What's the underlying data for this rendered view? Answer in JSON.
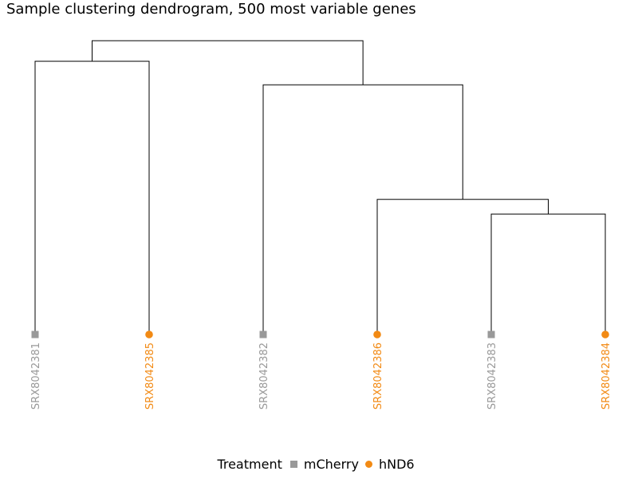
{
  "chart_data": {
    "type": "dendrogram",
    "title": "Sample clustering dendrogram, 500 most variable genes",
    "leaves": [
      {
        "label": "SRX8042381",
        "group": "mCherry"
      },
      {
        "label": "SRX8042385",
        "group": "hND6"
      },
      {
        "label": "SRX8042382",
        "group": "mCherry"
      },
      {
        "label": "SRX8042386",
        "group": "hND6"
      },
      {
        "label": "SRX8042383",
        "group": "mCherry"
      },
      {
        "label": "SRX8042384",
        "group": "hND6"
      }
    ],
    "merges": [
      {
        "left": "leaf:4",
        "right": "leaf:5",
        "height": 0.41
      },
      {
        "left": "leaf:3",
        "right": "node:0",
        "height": 0.46
      },
      {
        "left": "leaf:2",
        "right": "node:1",
        "height": 0.85
      },
      {
        "left": "leaf:0",
        "right": "leaf:1",
        "height": 0.93
      },
      {
        "left": "node:3",
        "right": "node:2",
        "height": 1.0
      }
    ],
    "legend": {
      "title": "Treatment",
      "placement": "bottom",
      "entries": [
        {
          "label": "mCherry",
          "shape": "square",
          "color": "#999999"
        },
        {
          "label": "hND6",
          "shape": "circle",
          "color": "#f28a14"
        }
      ]
    },
    "branch_color": "#000000"
  }
}
